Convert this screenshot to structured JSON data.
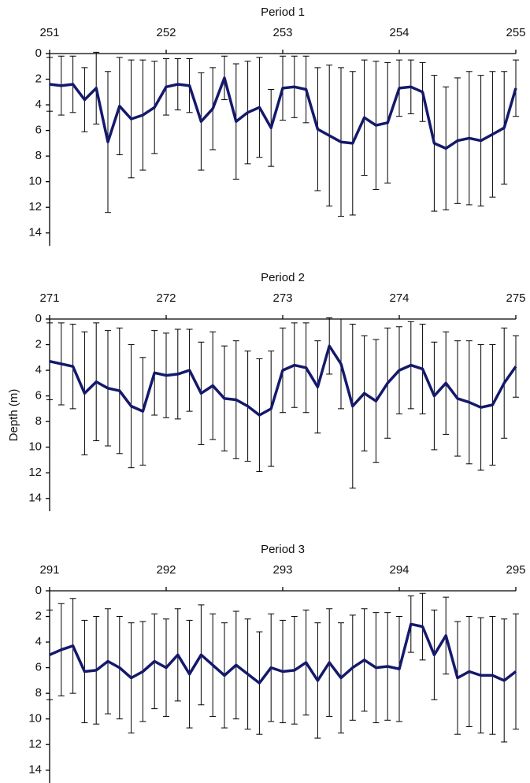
{
  "chart_data": [
    {
      "type": "line",
      "title": "Period 1",
      "x": [
        251.0,
        251.1,
        251.2,
        251.3,
        251.4,
        251.5,
        251.6,
        251.7,
        251.8,
        251.9,
        252.0,
        252.1,
        252.2,
        252.3,
        252.4,
        252.5,
        252.6,
        252.7,
        252.8,
        252.9,
        253.0,
        253.1,
        253.2,
        253.3,
        253.4,
        253.5,
        253.6,
        253.7,
        253.8,
        253.9,
        254.0,
        254.1,
        254.2,
        254.3,
        254.4,
        254.5,
        254.6,
        254.7,
        254.8,
        254.9,
        255.0
      ],
      "series": [
        {
          "color": "#14196b",
          "values": [
            2.4,
            2.5,
            2.4,
            3.6,
            2.7,
            6.9,
            4.1,
            5.1,
            4.8,
            4.2,
            2.6,
            2.4,
            2.5,
            5.3,
            4.3,
            1.9,
            5.3,
            4.6,
            4.2,
            5.8,
            2.7,
            2.6,
            2.8,
            5.9,
            6.4,
            6.9,
            7.0,
            5.0,
            5.6,
            5.4,
            2.7,
            2.6,
            3.0,
            7.0,
            7.4,
            6.8,
            6.6,
            6.8,
            6.3,
            5.8,
            2.7
          ],
          "errors": [
            2.1,
            2.3,
            2.2,
            2.5,
            2.8,
            5.5,
            3.8,
            4.6,
            4.3,
            3.6,
            2.2,
            2.0,
            2.1,
            3.8,
            3.2,
            1.7,
            4.5,
            4.0,
            3.9,
            3.0,
            2.5,
            2.4,
            2.6,
            4.8,
            5.5,
            5.8,
            5.6,
            4.5,
            5.0,
            4.7,
            2.2,
            2.1,
            2.3,
            5.3,
            4.8,
            4.9,
            5.2,
            5.1,
            4.9,
            4.4,
            2.2
          ]
        }
      ],
      "xlim": [
        251,
        255
      ],
      "xticks": [
        251,
        252,
        253,
        254,
        255
      ],
      "ylim": [
        0,
        15
      ],
      "yticks": [
        0,
        2,
        4,
        6,
        8,
        10,
        12,
        14
      ],
      "y_inverted": true
    },
    {
      "type": "line",
      "title": "Period 2",
      "ylabel": "Depth (m)",
      "x": [
        271.0,
        271.1,
        271.2,
        271.3,
        271.4,
        271.5,
        271.6,
        271.7,
        271.8,
        271.9,
        272.0,
        272.1,
        272.2,
        272.3,
        272.4,
        272.5,
        272.6,
        272.7,
        272.8,
        272.9,
        273.0,
        273.1,
        273.2,
        273.3,
        273.4,
        273.5,
        273.6,
        273.7,
        273.8,
        273.9,
        274.0,
        274.1,
        274.2,
        274.3,
        274.4,
        274.5,
        274.6,
        274.7,
        274.8,
        274.9,
        275.0
      ],
      "series": [
        {
          "color": "#14196b",
          "values": [
            3.3,
            3.5,
            3.7,
            5.8,
            4.9,
            5.4,
            5.6,
            6.8,
            7.2,
            4.2,
            4.4,
            4.3,
            4.0,
            5.8,
            5.2,
            6.2,
            6.3,
            6.8,
            7.5,
            7.0,
            4.0,
            3.6,
            3.8,
            5.3,
            2.1,
            3.5,
            6.8,
            5.8,
            6.4,
            5.0,
            4.0,
            3.6,
            3.9,
            6.0,
            5.0,
            6.2,
            6.5,
            6.9,
            6.7,
            5.0,
            3.7
          ],
          "errors": [
            3.0,
            3.2,
            3.3,
            4.8,
            4.6,
            4.5,
            4.9,
            4.8,
            4.2,
            3.3,
            3.3,
            3.5,
            3.2,
            4.0,
            4.2,
            4.1,
            4.6,
            4.3,
            4.4,
            4.5,
            3.3,
            3.3,
            3.5,
            3.6,
            2.2,
            3.5,
            6.4,
            4.5,
            4.8,
            4.3,
            3.4,
            3.4,
            3.5,
            4.2,
            4.0,
            4.5,
            4.8,
            4.9,
            4.7,
            4.3,
            2.4
          ]
        }
      ],
      "xlim": [
        271,
        275
      ],
      "xticks": [
        271,
        272,
        273,
        274,
        275
      ],
      "ylim": [
        0,
        15
      ],
      "yticks": [
        0,
        2,
        4,
        6,
        8,
        10,
        12,
        14
      ],
      "y_inverted": true
    },
    {
      "type": "line",
      "title": "Period 3",
      "x": [
        291.0,
        291.1,
        291.2,
        291.3,
        291.4,
        291.5,
        291.6,
        291.7,
        291.8,
        291.9,
        292.0,
        292.1,
        292.2,
        292.3,
        292.4,
        292.5,
        292.6,
        292.7,
        292.8,
        292.9,
        293.0,
        293.1,
        293.2,
        293.3,
        293.4,
        293.5,
        293.6,
        293.7,
        293.8,
        293.9,
        294.0,
        294.1,
        294.2,
        294.3,
        294.4,
        294.5,
        294.6,
        294.7,
        294.8,
        294.9,
        295.0
      ],
      "series": [
        {
          "color": "#14196b",
          "values": [
            5.0,
            4.6,
            4.3,
            6.3,
            6.2,
            5.5,
            6.0,
            6.8,
            6.3,
            5.5,
            6.0,
            5.0,
            6.5,
            5.0,
            5.8,
            6.6,
            5.8,
            6.5,
            7.2,
            6.0,
            6.3,
            6.2,
            5.6,
            7.0,
            5.6,
            6.8,
            6.0,
            5.4,
            6.0,
            5.9,
            6.1,
            2.6,
            2.8,
            5.0,
            3.5,
            6.8,
            6.3,
            6.6,
            6.6,
            7.0,
            6.3
          ],
          "errors": [
            3.5,
            3.6,
            3.7,
            4.0,
            4.2,
            4.1,
            4.0,
            4.3,
            3.9,
            3.7,
            3.8,
            3.6,
            4.2,
            3.9,
            4.0,
            4.1,
            4.2,
            4.3,
            4.0,
            4.2,
            4.0,
            4.2,
            4.1,
            4.5,
            4.2,
            4.3,
            4.1,
            4.0,
            4.3,
            4.2,
            4.1,
            2.2,
            2.6,
            3.5,
            3.0,
            4.4,
            4.3,
            4.5,
            4.6,
            4.8,
            4.5
          ]
        }
      ],
      "xlim": [
        291,
        295
      ],
      "xticks": [
        291,
        292,
        293,
        294,
        295
      ],
      "ylim": [
        0,
        15
      ],
      "yticks": [
        0,
        2,
        4,
        6,
        8,
        10,
        12,
        14
      ],
      "y_inverted": true
    }
  ]
}
